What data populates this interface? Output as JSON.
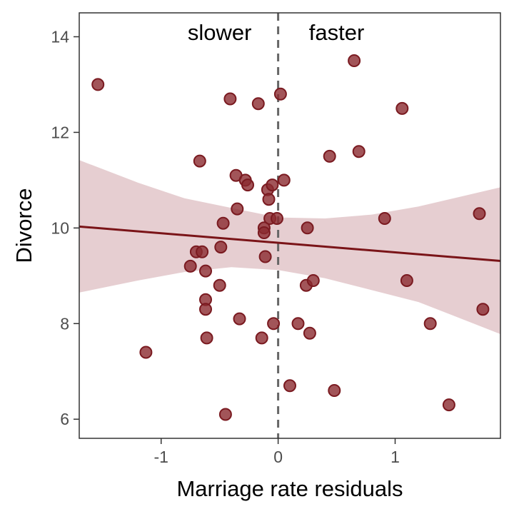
{
  "chart_data": {
    "type": "scatter",
    "xlabel": "Marriage rate residuals",
    "ylabel": "Divorce",
    "xlim": [
      -1.7,
      1.9
    ],
    "ylim": [
      5.6,
      14.5
    ],
    "xticks": [
      -1,
      0,
      1
    ],
    "xtick_labels": [
      "-1",
      "0",
      "1"
    ],
    "yticks": [
      6,
      8,
      10,
      12,
      14
    ],
    "ytick_labels": [
      "6",
      "8",
      "10",
      "12",
      "14"
    ],
    "grid": false,
    "annotations": [
      {
        "text": "slower",
        "x": -0.5,
        "y": 14.1
      },
      {
        "text": "faster",
        "x": 0.5,
        "y": 14.1
      }
    ],
    "reference_line": {
      "x": 0,
      "style": "dashed"
    },
    "regression": {
      "x": [
        -1.7,
        1.9
      ],
      "y": [
        10.03,
        9.31
      ]
    },
    "confidence_band": {
      "x": [
        -1.7,
        -1.2,
        -0.8,
        -0.4,
        0.0,
        0.4,
        0.8,
        1.2,
        1.9
      ],
      "lower": [
        8.65,
        8.9,
        9.08,
        9.18,
        9.12,
        8.95,
        8.7,
        8.45,
        7.78
      ],
      "upper": [
        11.42,
        10.95,
        10.62,
        10.42,
        10.22,
        10.2,
        10.28,
        10.45,
        10.85
      ]
    },
    "points": [
      {
        "x": -1.54,
        "y": 13.0
      },
      {
        "x": -1.13,
        "y": 7.4
      },
      {
        "x": -0.75,
        "y": 9.2
      },
      {
        "x": -0.7,
        "y": 9.5
      },
      {
        "x": -0.67,
        "y": 11.4
      },
      {
        "x": -0.65,
        "y": 9.5
      },
      {
        "x": -0.62,
        "y": 9.1
      },
      {
        "x": -0.62,
        "y": 8.5
      },
      {
        "x": -0.62,
        "y": 8.3
      },
      {
        "x": -0.61,
        "y": 7.7
      },
      {
        "x": -0.5,
        "y": 8.8
      },
      {
        "x": -0.49,
        "y": 9.6
      },
      {
        "x": -0.47,
        "y": 10.1
      },
      {
        "x": -0.45,
        "y": 6.1
      },
      {
        "x": -0.41,
        "y": 12.7
      },
      {
        "x": -0.36,
        "y": 11.1
      },
      {
        "x": -0.35,
        "y": 10.4
      },
      {
        "x": -0.33,
        "y": 8.1
      },
      {
        "x": -0.28,
        "y": 11.0
      },
      {
        "x": -0.26,
        "y": 10.9
      },
      {
        "x": -0.17,
        "y": 12.6
      },
      {
        "x": -0.14,
        "y": 7.7
      },
      {
        "x": -0.12,
        "y": 10.0
      },
      {
        "x": -0.12,
        "y": 9.9
      },
      {
        "x": -0.11,
        "y": 9.4
      },
      {
        "x": -0.09,
        "y": 10.8
      },
      {
        "x": -0.08,
        "y": 10.6
      },
      {
        "x": -0.07,
        "y": 10.2
      },
      {
        "x": -0.05,
        "y": 10.9
      },
      {
        "x": -0.04,
        "y": 8.0
      },
      {
        "x": -0.01,
        "y": 10.2
      },
      {
        "x": 0.02,
        "y": 12.8
      },
      {
        "x": 0.05,
        "y": 11.0
      },
      {
        "x": 0.1,
        "y": 6.7
      },
      {
        "x": 0.17,
        "y": 8.0
      },
      {
        "x": 0.24,
        "y": 8.8
      },
      {
        "x": 0.25,
        "y": 10.0
      },
      {
        "x": 0.27,
        "y": 7.8
      },
      {
        "x": 0.3,
        "y": 8.9
      },
      {
        "x": 0.44,
        "y": 11.5
      },
      {
        "x": 0.48,
        "y": 6.6
      },
      {
        "x": 0.65,
        "y": 13.5
      },
      {
        "x": 0.69,
        "y": 11.6
      },
      {
        "x": 0.91,
        "y": 10.2
      },
      {
        "x": 1.06,
        "y": 12.5
      },
      {
        "x": 1.1,
        "y": 8.9
      },
      {
        "x": 1.3,
        "y": 8.0
      },
      {
        "x": 1.46,
        "y": 6.3
      },
      {
        "x": 1.72,
        "y": 10.3
      },
      {
        "x": 1.75,
        "y": 8.3
      }
    ],
    "colors": {
      "point_fill": "#8b2a2f",
      "point_stroke": "#7a1a20",
      "line": "#7a1418",
      "band": "#d8b4b8",
      "reference": "#666666",
      "panel_border": "#333333"
    }
  }
}
